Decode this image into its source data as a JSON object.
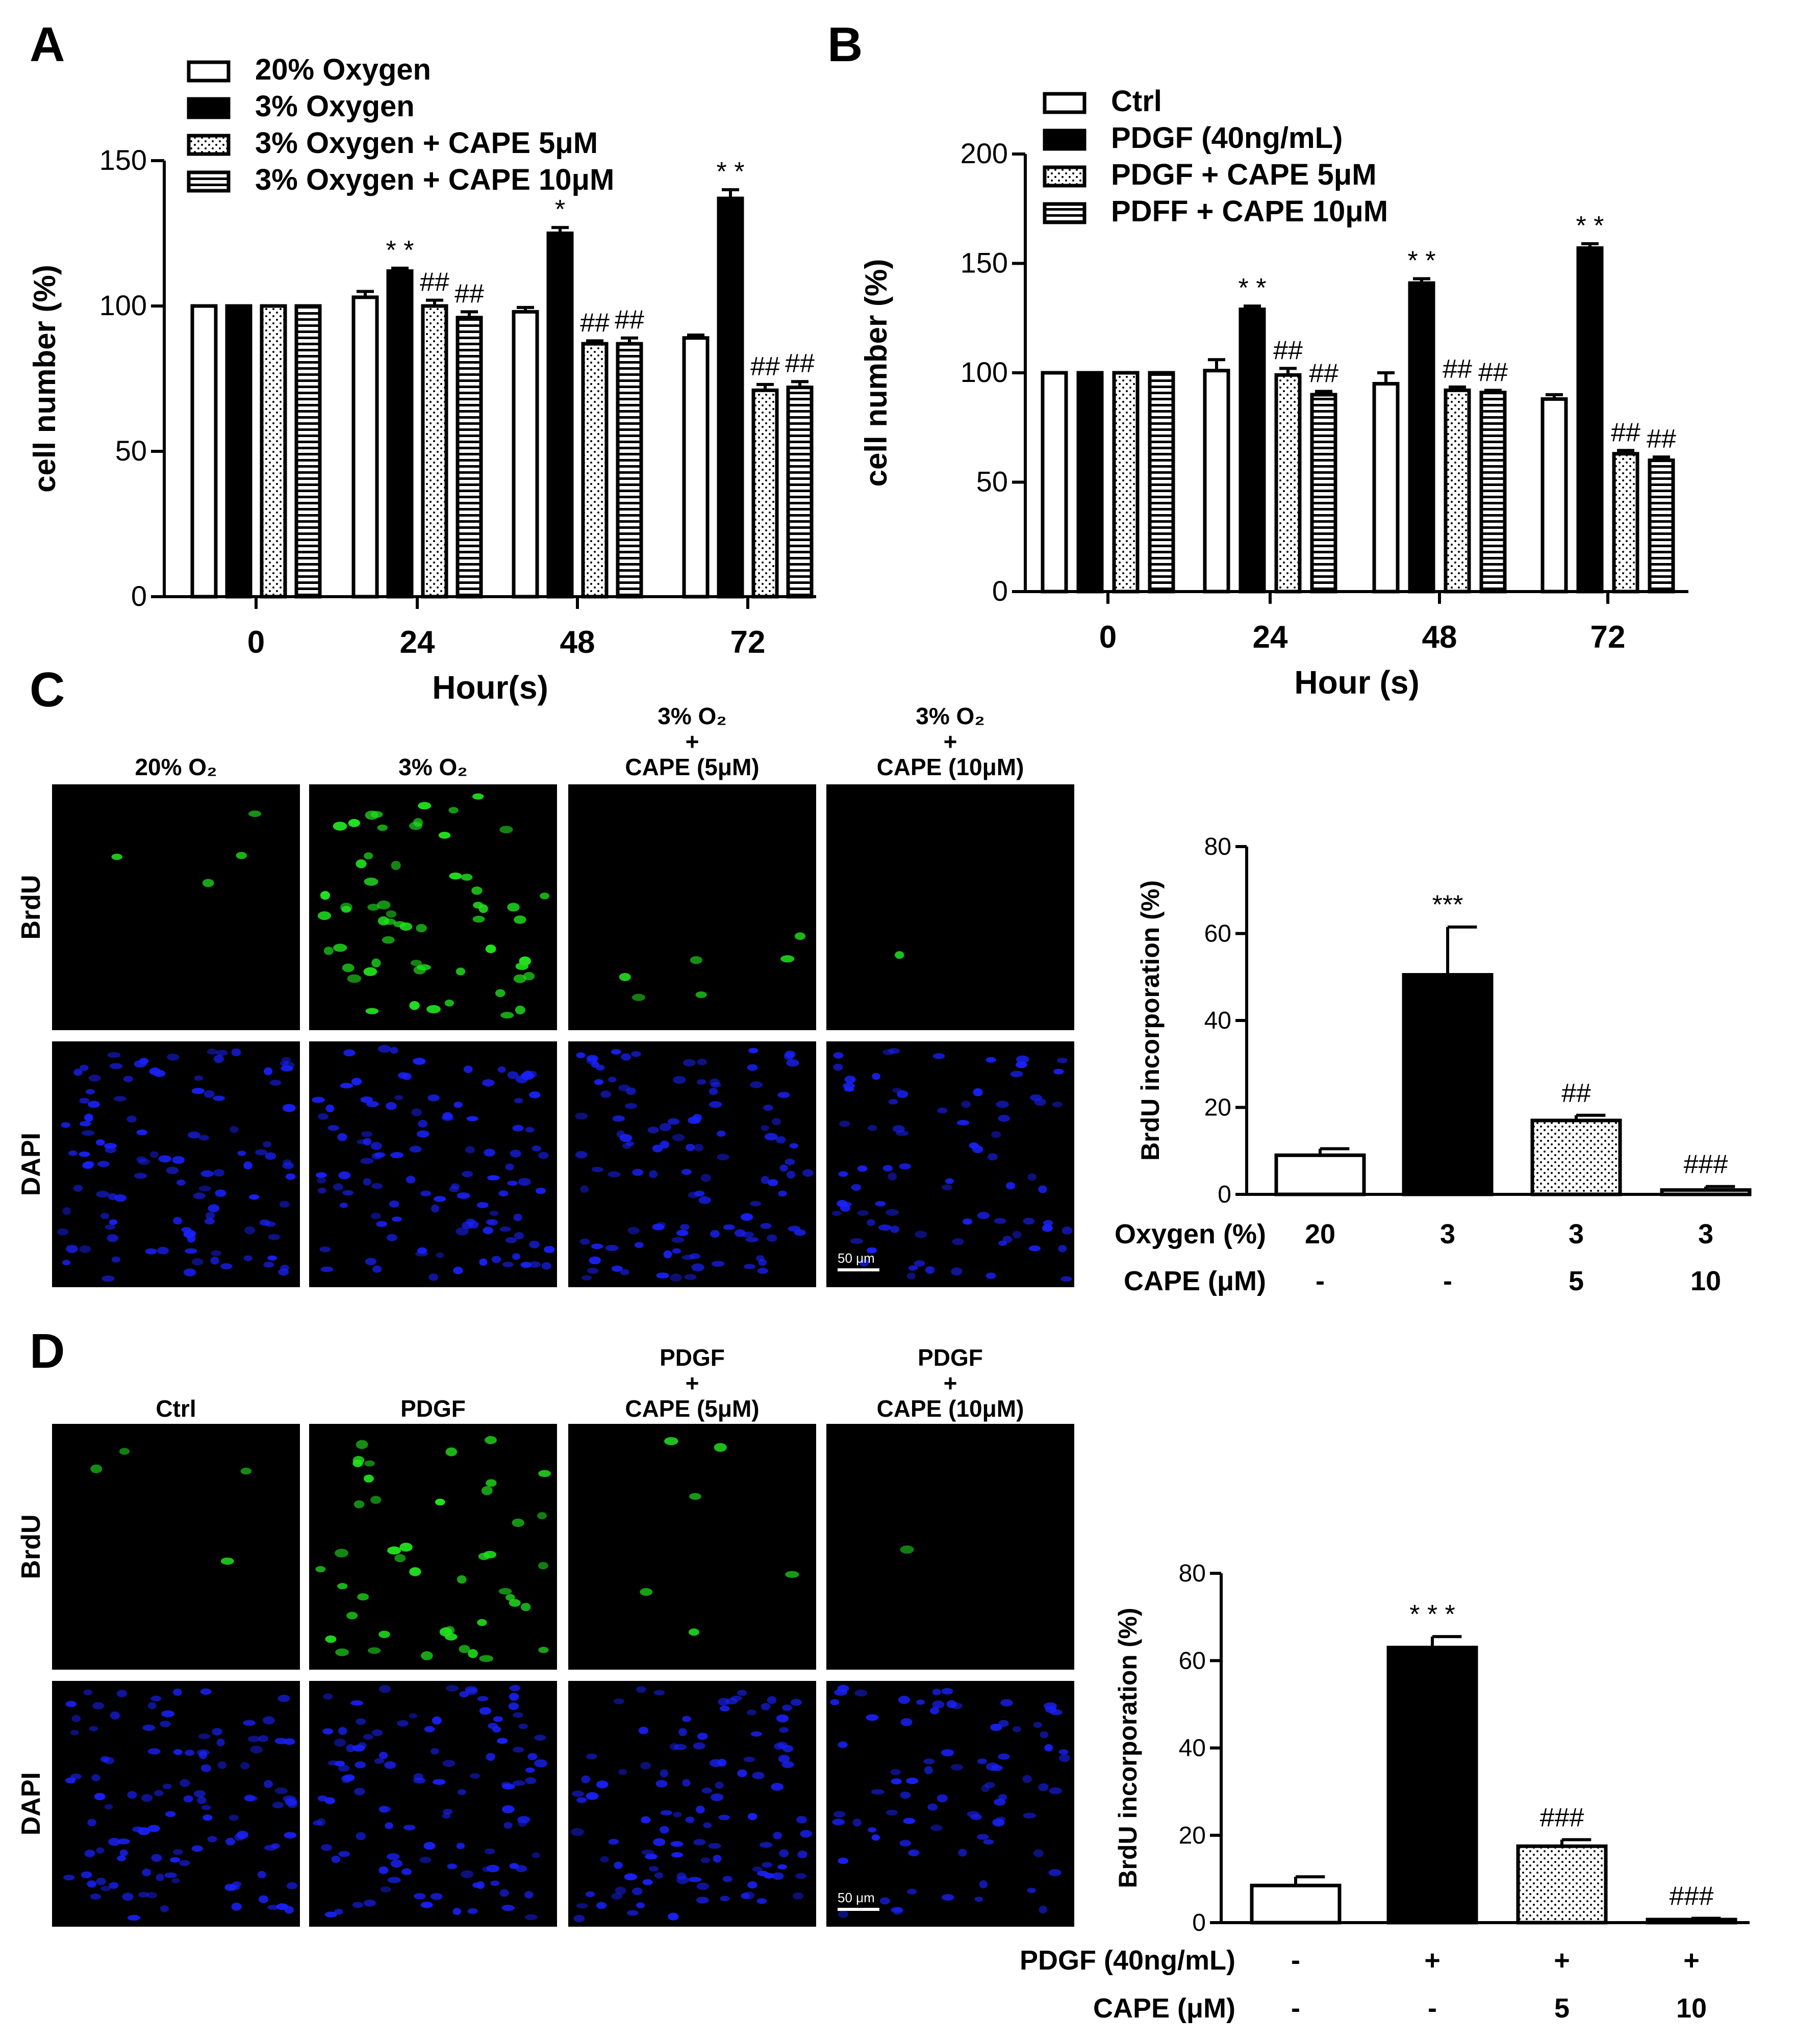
{
  "panels": [
    {
      "letter": "A"
    },
    {
      "letter": "B"
    },
    {
      "letter": "C"
    },
    {
      "letter": "D"
    }
  ],
  "colors": {
    "bar_black": "#000000",
    "bar_white": "#ffffff",
    "brdu_green": "#22e01f",
    "dapi_blue": "#1a22ff",
    "micrograph_bg": "#000000"
  },
  "chart_data": [
    {
      "type": "bar",
      "panel": "A",
      "title": "",
      "xlabel": "Hour(s)",
      "ylabel": "cell number (%)",
      "ylim": [
        0,
        150
      ],
      "yticks": [
        "0",
        "50",
        "100",
        "150"
      ],
      "categories": [
        "0",
        "24",
        "48",
        "72"
      ],
      "legend_position": "top-left",
      "series": [
        {
          "name": "20% Oxygen",
          "fill": "white",
          "values": [
            100,
            103,
            98,
            89
          ],
          "errors": [
            0,
            2,
            1.5,
            1
          ],
          "annotations": [
            "",
            "",
            "",
            ""
          ]
        },
        {
          "name": "3% Oxygen",
          "fill": "black",
          "values": [
            100,
            112,
            125,
            137
          ],
          "errors": [
            0,
            1,
            2,
            3
          ],
          "annotations": [
            "",
            "* *",
            "*",
            "* *"
          ]
        },
        {
          "name": "3% Oxygen + CAPE  5μM",
          "fill": "dotted",
          "values": [
            100,
            100,
            87,
            71
          ],
          "errors": [
            0,
            2,
            1,
            2
          ],
          "annotations": [
            "",
            "##",
            "##",
            "##"
          ]
        },
        {
          "name": "3% Oxygen + CAPE 10μM",
          "fill": "hstripe",
          "values": [
            100,
            96,
            87,
            72
          ],
          "errors": [
            0,
            2,
            2,
            2
          ],
          "annotations": [
            "",
            "##",
            "##",
            "##"
          ]
        }
      ]
    },
    {
      "type": "bar",
      "panel": "B",
      "title": "",
      "xlabel": "Hour (s)",
      "ylabel": "cell number (%)",
      "ylim": [
        0,
        200
      ],
      "yticks": [
        "0",
        "50",
        "100",
        "150",
        "200"
      ],
      "categories": [
        "0",
        "24",
        "48",
        "72"
      ],
      "legend_position": "top-left",
      "series": [
        {
          "name": "Ctrl",
          "fill": "white",
          "values": [
            100,
            101,
            95,
            88
          ],
          "errors": [
            0,
            5,
            5,
            2
          ],
          "annotations": [
            "",
            "",
            "",
            ""
          ]
        },
        {
          "name": "PDGF (40ng/mL)",
          "fill": "black",
          "values": [
            100,
            129,
            141,
            157
          ],
          "errors": [
            0,
            1.5,
            2,
            2
          ],
          "annotations": [
            "",
            "* *",
            "* *",
            "* *"
          ]
        },
        {
          "name": "PDGF + CAPE 5μM",
          "fill": "dotted",
          "values": [
            100,
            99,
            92,
            63
          ],
          "errors": [
            0,
            3,
            1.5,
            1.5
          ],
          "annotations": [
            "",
            "##",
            "##",
            "##"
          ]
        },
        {
          "name": "PDFF + CAPE 10μM",
          "fill": "hstripe",
          "values": [
            100,
            90,
            91,
            60
          ],
          "errors": [
            0,
            1.5,
            1,
            1.5
          ],
          "annotations": [
            "",
            "##",
            "##",
            "##"
          ]
        }
      ]
    },
    {
      "type": "bar",
      "panel": "C",
      "title": "",
      "xlabel": "",
      "ylabel": "BrdU incorporation (%)",
      "ylim": [
        0,
        80
      ],
      "yticks": [
        "0",
        "20",
        "40",
        "60",
        "80"
      ],
      "categories": [
        "g1",
        "g2",
        "g3",
        "g4"
      ],
      "fills": [
        "white",
        "black",
        "dotted",
        "white"
      ],
      "values": [
        9,
        50.5,
        17,
        1
      ],
      "errors": [
        1.5,
        11,
        1.2,
        0.8
      ],
      "annotations": [
        "",
        "***",
        "##",
        "###"
      ],
      "condition_rows": [
        {
          "label": "Oxygen (%)",
          "values": [
            "20",
            "3",
            "3",
            "3"
          ]
        },
        {
          "label": "CAPE (μM)",
          "values": [
            "-",
            "-",
            "5",
            "10"
          ]
        }
      ]
    },
    {
      "type": "bar",
      "panel": "D",
      "title": "",
      "xlabel": "",
      "ylabel": "BrdU incorporation (%)",
      "ylim": [
        0,
        80
      ],
      "yticks": [
        "0",
        "20",
        "40",
        "60",
        "80"
      ],
      "categories": [
        "g1",
        "g2",
        "g3",
        "g4"
      ],
      "fills": [
        "white",
        "black",
        "dotted",
        "white"
      ],
      "values": [
        8.5,
        63,
        17.5,
        0.7
      ],
      "errors": [
        2,
        2.5,
        1.5,
        0.3
      ],
      "annotations": [
        "",
        "* * *",
        "###",
        "###"
      ],
      "condition_rows": [
        {
          "label": "PDGF (40ng/mL)",
          "values": [
            "-",
            "+",
            "+",
            "+"
          ]
        },
        {
          "label": "CAPE (μM)",
          "values": [
            "-",
            "-",
            "5",
            "10"
          ]
        }
      ]
    }
  ],
  "micrographs": [
    {
      "panel": "C",
      "row_labels": [
        "BrdU",
        "DAPI"
      ],
      "columns": [
        {
          "lines": [
            "20% O₂"
          ]
        },
        {
          "lines": [
            "3% O₂"
          ]
        },
        {
          "lines": [
            "3% O₂",
            "+",
            "CAPE (5μM)"
          ]
        },
        {
          "lines": [
            "3% O₂",
            "+",
            "CAPE (10μM)"
          ]
        }
      ],
      "scale_bar": "50 μm",
      "brdu_counts": [
        4,
        60,
        6,
        1
      ]
    },
    {
      "panel": "D",
      "row_labels": [
        "BrdU",
        "DAPI"
      ],
      "columns": [
        {
          "lines": [
            "Ctrl"
          ]
        },
        {
          "lines": [
            "PDGF"
          ]
        },
        {
          "lines": [
            "PDGF",
            "+",
            "CAPE (5μM)"
          ]
        },
        {
          "lines": [
            "PDGF",
            "+",
            "CAPE (10μM)"
          ]
        }
      ],
      "scale_bar": "50 μm",
      "brdu_counts": [
        4,
        45,
        6,
        1
      ]
    }
  ]
}
